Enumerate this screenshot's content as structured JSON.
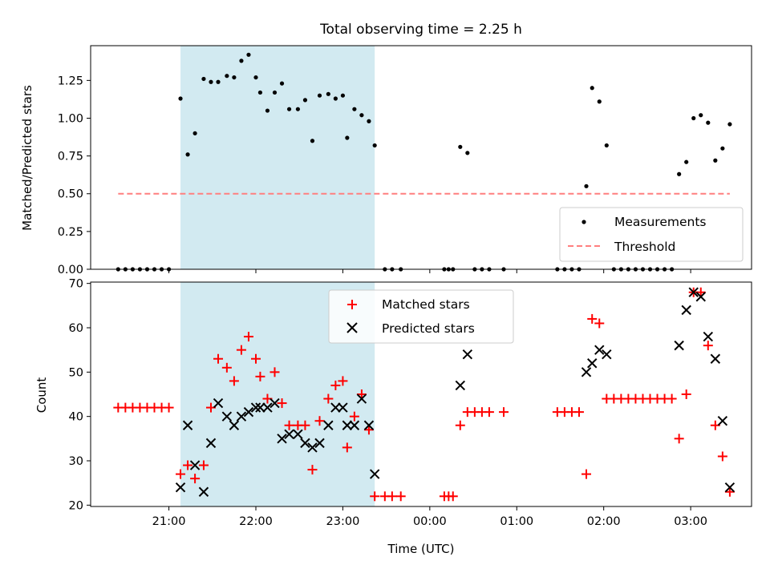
{
  "chart_data": [
    {
      "type": "scatter",
      "title": "Total observing time = 2.25 h",
      "xlabel": "",
      "ylabel": "Matched/Predicted stars",
      "ylim": [
        0,
        1.48
      ],
      "yticks": [
        "0.00",
        "0.25",
        "0.50",
        "0.75",
        "1.00",
        "1.25"
      ],
      "shaded_span": [
        "21:08",
        "23:22"
      ],
      "shaded_color": "#add8e6",
      "legend_position": "lower-right",
      "series": [
        {
          "name": "Measurements",
          "color": "#000000",
          "marker": "dot",
          "points": [
            [
              "20:25",
              0
            ],
            [
              "20:30",
              0
            ],
            [
              "20:35",
              0
            ],
            [
              "20:40",
              0
            ],
            [
              "20:45",
              0
            ],
            [
              "20:50",
              0
            ],
            [
              "20:55",
              0
            ],
            [
              "21:00",
              0
            ],
            [
              "21:08",
              1.13
            ],
            [
              "21:13",
              0.76
            ],
            [
              "21:18",
              0.9
            ],
            [
              "21:24",
              1.26
            ],
            [
              "21:29",
              1.24
            ],
            [
              "21:34",
              1.24
            ],
            [
              "21:40",
              1.28
            ],
            [
              "21:45",
              1.27
            ],
            [
              "21:50",
              1.38
            ],
            [
              "21:55",
              1.42
            ],
            [
              "22:00",
              1.27
            ],
            [
              "22:03",
              1.17
            ],
            [
              "22:08",
              1.05
            ],
            [
              "22:13",
              1.17
            ],
            [
              "22:18",
              1.23
            ],
            [
              "22:23",
              1.06
            ],
            [
              "22:29",
              1.06
            ],
            [
              "22:34",
              1.12
            ],
            [
              "22:39",
              0.85
            ],
            [
              "22:44",
              1.15
            ],
            [
              "22:50",
              1.16
            ],
            [
              "22:55",
              1.13
            ],
            [
              "23:00",
              1.15
            ],
            [
              "23:03",
              0.87
            ],
            [
              "23:08",
              1.06
            ],
            [
              "23:13",
              1.02
            ],
            [
              "23:18",
              0.98
            ],
            [
              "23:22",
              0.82
            ],
            [
              "23:29",
              0
            ],
            [
              "23:34",
              0
            ],
            [
              "23:40",
              0
            ],
            [
              "00:10",
              0
            ],
            [
              "00:13",
              0
            ],
            [
              "00:16",
              0
            ],
            [
              "00:21",
              0.81
            ],
            [
              "00:26",
              0.77
            ],
            [
              "00:31",
              0
            ],
            [
              "00:36",
              0
            ],
            [
              "00:41",
              0
            ],
            [
              "00:51",
              0
            ],
            [
              "01:28",
              0
            ],
            [
              "01:33",
              0
            ],
            [
              "01:38",
              0
            ],
            [
              "01:43",
              0
            ],
            [
              "01:48",
              0.55
            ],
            [
              "01:52",
              1.2
            ],
            [
              "01:57",
              1.11
            ],
            [
              "02:02",
              0.82
            ],
            [
              "02:07",
              0
            ],
            [
              "02:12",
              0
            ],
            [
              "02:17",
              0
            ],
            [
              "02:22",
              0
            ],
            [
              "02:27",
              0
            ],
            [
              "02:32",
              0
            ],
            [
              "02:37",
              0
            ],
            [
              "02:42",
              0
            ],
            [
              "02:47",
              0
            ],
            [
              "02:52",
              0.63
            ],
            [
              "02:57",
              0.71
            ],
            [
              "03:02",
              1.0
            ],
            [
              "03:07",
              1.02
            ],
            [
              "03:12",
              0.97
            ],
            [
              "03:17",
              0.72
            ],
            [
              "03:22",
              0.8
            ],
            [
              "03:27",
              0.96
            ]
          ]
        },
        {
          "name": "Threshold",
          "color": "#ff7f7f",
          "line": "dashed",
          "points": [
            [
              "20:25",
              0.5
            ],
            [
              "03:27",
              0.5
            ]
          ]
        }
      ]
    },
    {
      "type": "scatter",
      "title": "",
      "xlabel": "Time (UTC)",
      "ylabel": "Count",
      "ylim": [
        19.7,
        70.3
      ],
      "yticks": [
        "20",
        "30",
        "40",
        "50",
        "60",
        "70"
      ],
      "xticks": [
        "21:00",
        "22:00",
        "23:00",
        "00:00",
        "01:00",
        "02:00",
        "03:00"
      ],
      "shaded_span": [
        "21:08",
        "23:22"
      ],
      "shaded_color": "#add8e6",
      "legend_position": "upper-center",
      "series": [
        {
          "name": "Matched stars",
          "color": "#ff0000",
          "marker": "plus",
          "points": [
            [
              "20:25",
              42
            ],
            [
              "20:30",
              42
            ],
            [
              "20:35",
              42
            ],
            [
              "20:40",
              42
            ],
            [
              "20:45",
              42
            ],
            [
              "20:50",
              42
            ],
            [
              "20:55",
              42
            ],
            [
              "21:00",
              42
            ],
            [
              "21:08",
              27
            ],
            [
              "21:13",
              29
            ],
            [
              "21:18",
              26
            ],
            [
              "21:24",
              29
            ],
            [
              "21:29",
              42
            ],
            [
              "21:34",
              53
            ],
            [
              "21:40",
              51
            ],
            [
              "21:45",
              48
            ],
            [
              "21:50",
              55
            ],
            [
              "21:55",
              58
            ],
            [
              "22:00",
              53
            ],
            [
              "22:03",
              49
            ],
            [
              "22:08",
              44
            ],
            [
              "22:13",
              50
            ],
            [
              "22:18",
              43
            ],
            [
              "22:23",
              38
            ],
            [
              "22:29",
              38
            ],
            [
              "22:34",
              38
            ],
            [
              "22:39",
              28
            ],
            [
              "22:44",
              39
            ],
            [
              "22:50",
              44
            ],
            [
              "22:55",
              47
            ],
            [
              "23:00",
              48
            ],
            [
              "23:03",
              33
            ],
            [
              "23:08",
              40
            ],
            [
              "23:13",
              45
            ],
            [
              "23:18",
              37
            ],
            [
              "23:22",
              22
            ],
            [
              "23:29",
              22
            ],
            [
              "23:34",
              22
            ],
            [
              "23:40",
              22
            ],
            [
              "00:10",
              22
            ],
            [
              "00:13",
              22
            ],
            [
              "00:16",
              22
            ],
            [
              "00:21",
              38
            ],
            [
              "00:26",
              41
            ],
            [
              "00:31",
              41
            ],
            [
              "00:36",
              41
            ],
            [
              "00:41",
              41
            ],
            [
              "00:51",
              41
            ],
            [
              "01:28",
              41
            ],
            [
              "01:33",
              41
            ],
            [
              "01:38",
              41
            ],
            [
              "01:43",
              41
            ],
            [
              "01:48",
              27
            ],
            [
              "01:52",
              62
            ],
            [
              "01:57",
              61
            ],
            [
              "02:02",
              44
            ],
            [
              "02:07",
              44
            ],
            [
              "02:12",
              44
            ],
            [
              "02:17",
              44
            ],
            [
              "02:22",
              44
            ],
            [
              "02:27",
              44
            ],
            [
              "02:32",
              44
            ],
            [
              "02:37",
              44
            ],
            [
              "02:42",
              44
            ],
            [
              "02:47",
              44
            ],
            [
              "02:52",
              35
            ],
            [
              "02:57",
              45
            ],
            [
              "03:02",
              68
            ],
            [
              "03:07",
              68
            ],
            [
              "03:12",
              56
            ],
            [
              "03:17",
              38
            ],
            [
              "03:22",
              31
            ],
            [
              "03:27",
              23
            ]
          ]
        },
        {
          "name": "Predicted stars",
          "color": "#000000",
          "marker": "x",
          "points": [
            [
              "21:08",
              24
            ],
            [
              "21:13",
              38
            ],
            [
              "21:18",
              29
            ],
            [
              "21:24",
              23
            ],
            [
              "21:29",
              34
            ],
            [
              "21:34",
              43
            ],
            [
              "21:40",
              40
            ],
            [
              "21:45",
              38
            ],
            [
              "21:50",
              40
            ],
            [
              "21:55",
              41
            ],
            [
              "22:00",
              42
            ],
            [
              "22:03",
              42
            ],
            [
              "22:08",
              42
            ],
            [
              "22:13",
              43
            ],
            [
              "22:18",
              35
            ],
            [
              "22:23",
              36
            ],
            [
              "22:29",
              36
            ],
            [
              "22:34",
              34
            ],
            [
              "22:39",
              33
            ],
            [
              "22:44",
              34
            ],
            [
              "22:50",
              38
            ],
            [
              "22:55",
              42
            ],
            [
              "23:00",
              42
            ],
            [
              "23:03",
              38
            ],
            [
              "23:08",
              38
            ],
            [
              "23:13",
              44
            ],
            [
              "23:18",
              38
            ],
            [
              "23:22",
              27
            ],
            [
              "00:21",
              47
            ],
            [
              "00:26",
              54
            ],
            [
              "01:48",
              50
            ],
            [
              "01:52",
              52
            ],
            [
              "01:57",
              55
            ],
            [
              "02:02",
              54
            ],
            [
              "02:52",
              56
            ],
            [
              "02:57",
              64
            ],
            [
              "03:02",
              68
            ],
            [
              "03:07",
              67
            ],
            [
              "03:12",
              58
            ],
            [
              "03:17",
              53
            ],
            [
              "03:22",
              39
            ],
            [
              "03:27",
              24
            ]
          ]
        }
      ]
    }
  ]
}
